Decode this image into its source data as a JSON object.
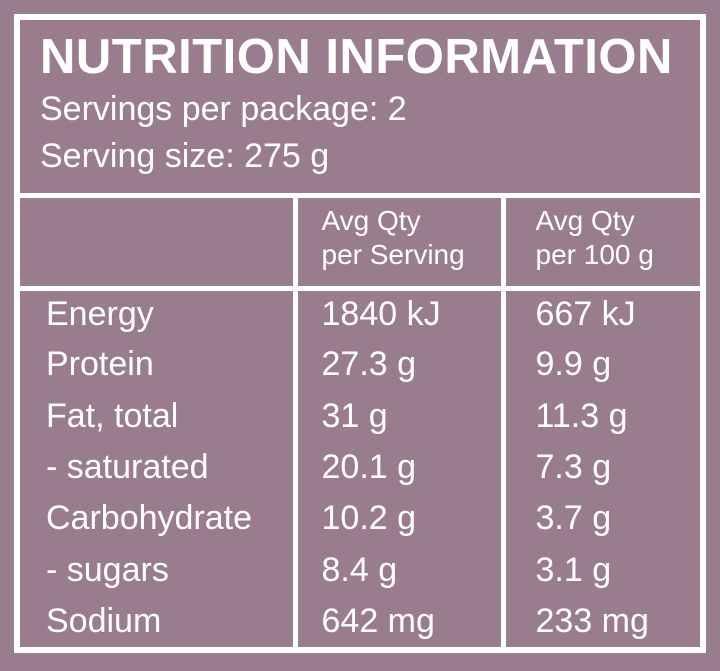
{
  "colors": {
    "background": "#997d8e",
    "border": "#ffffff",
    "text": "#ffffff"
  },
  "panel": {
    "title": "NUTRITION INFORMATION",
    "servings_per_package": "Servings per package: 2",
    "serving_size": "Serving size: 275 g"
  },
  "table": {
    "header": {
      "nutrient": "",
      "per_serving": "Avg Qty\nper Serving",
      "per_100g": "Avg Qty\nper 100 g"
    },
    "rows": [
      {
        "label": "Energy",
        "per_serving": "1840 kJ",
        "per_100g": "667 kJ"
      },
      {
        "label": "Protein",
        "per_serving": "27.3 g",
        "per_100g": "9.9 g"
      },
      {
        "label": "Fat, total",
        "per_serving": "31 g",
        "per_100g": "11.3 g"
      },
      {
        "label": "- saturated",
        "per_serving": "20.1 g",
        "per_100g": "7.3 g"
      },
      {
        "label": "Carbohydrate",
        "per_serving": "10.2 g",
        "per_100g": "3.7 g"
      },
      {
        "label": "- sugars",
        "per_serving": "8.4 g",
        "per_100g": "3.1 g"
      },
      {
        "label": "Sodium",
        "per_serving": "642 mg",
        "per_100g": "233 mg"
      }
    ]
  }
}
